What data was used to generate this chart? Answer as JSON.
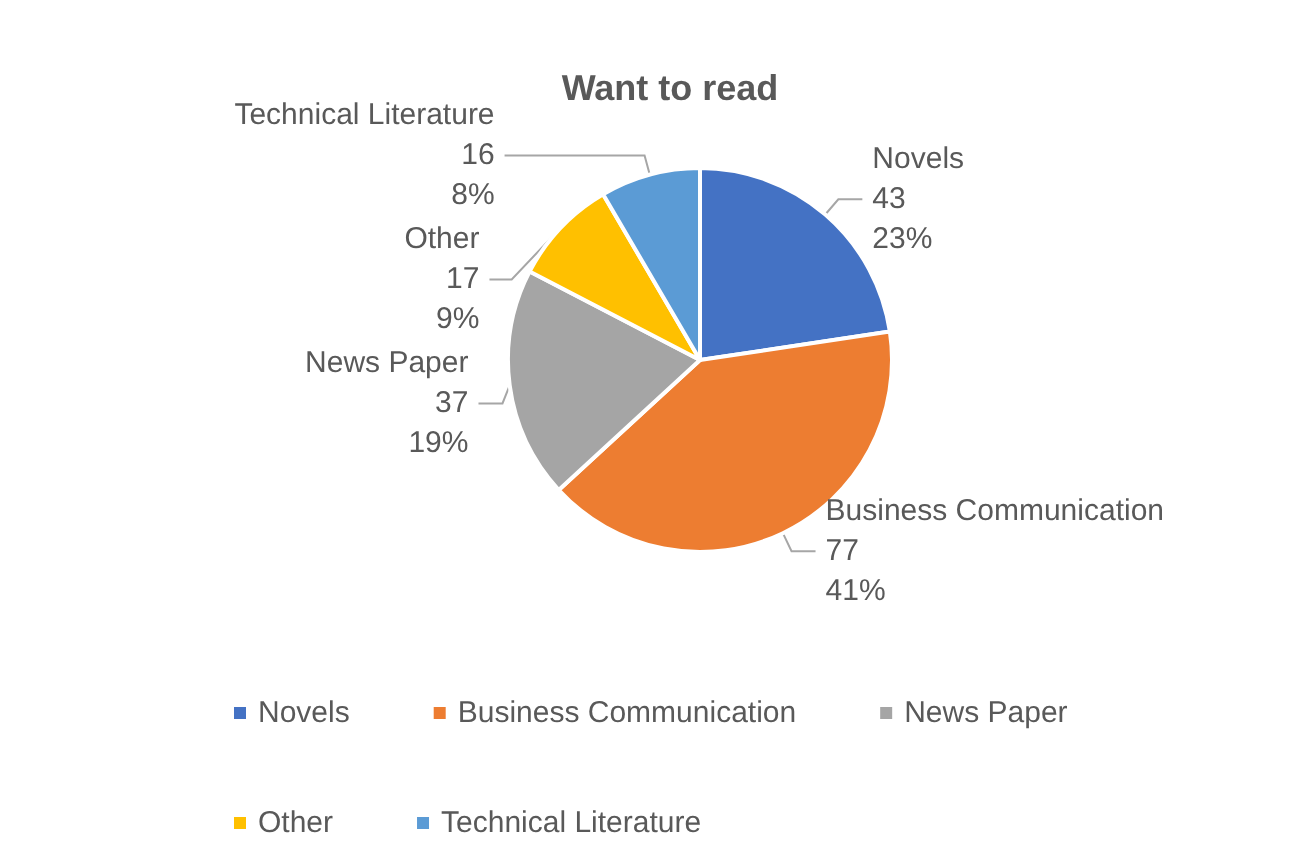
{
  "chart_data": {
    "type": "pie",
    "title": "Want to read",
    "categories": [
      "Novels",
      "Business Communication",
      "News Paper",
      "Other",
      "Technical Literature"
    ],
    "values": [
      43,
      77,
      37,
      17,
      16
    ],
    "colors": [
      "#4472c4",
      "#ed7d31",
      "#a5a5a5",
      "#ffc000",
      "#5b9bd5"
    ],
    "value_labels": [
      "43\n23%",
      "77\n41%",
      "37\n19%",
      "17\n9%",
      "16\n8%"
    ],
    "legend": "bottom"
  }
}
